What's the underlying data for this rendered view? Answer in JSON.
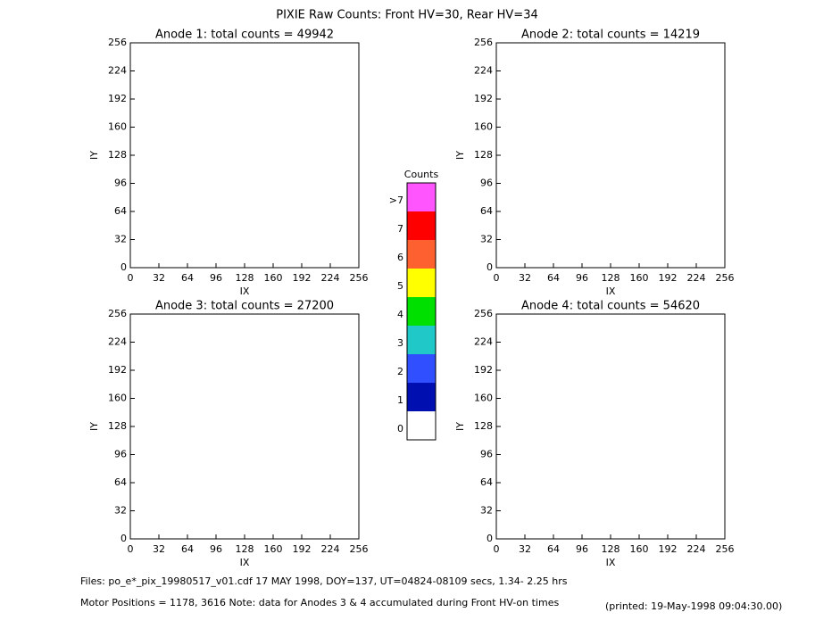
{
  "title": "PIXIE Raw Counts:  Front HV=30, Rear HV=34",
  "chart_data": [
    {
      "type": "heatmap",
      "title": "Anode 1: total counts = 49942",
      "xlabel": "IX",
      "ylabel": "IY",
      "xlim": [
        0,
        256
      ],
      "ylim": [
        0,
        256
      ],
      "xticks": [
        0,
        32,
        64,
        96,
        128,
        160,
        192,
        224,
        256
      ],
      "yticks": [
        0,
        32,
        64,
        96,
        128,
        160,
        192,
        224,
        256
      ]
    },
    {
      "type": "heatmap",
      "title": "Anode 2: total counts = 14219",
      "xlabel": "IX",
      "ylabel": "IY",
      "xlim": [
        0,
        256
      ],
      "ylim": [
        0,
        256
      ],
      "xticks": [
        0,
        32,
        64,
        96,
        128,
        160,
        192,
        224,
        256
      ],
      "yticks": [
        0,
        32,
        64,
        96,
        128,
        160,
        192,
        224,
        256
      ]
    },
    {
      "type": "heatmap",
      "title": "Anode 3: total counts = 27200",
      "xlabel": "IX",
      "ylabel": "IY",
      "xlim": [
        0,
        256
      ],
      "ylim": [
        0,
        256
      ],
      "xticks": [
        0,
        32,
        64,
        96,
        128,
        160,
        192,
        224,
        256
      ],
      "yticks": [
        0,
        32,
        64,
        96,
        128,
        160,
        192,
        224,
        256
      ]
    },
    {
      "type": "heatmap",
      "title": "Anode 4: total counts = 54620",
      "xlabel": "IX",
      "ylabel": "IY",
      "xlim": [
        0,
        256
      ],
      "ylim": [
        0,
        256
      ],
      "xticks": [
        0,
        32,
        64,
        96,
        128,
        160,
        192,
        224,
        256
      ],
      "yticks": [
        0,
        32,
        64,
        96,
        128,
        160,
        192,
        224,
        256
      ]
    }
  ],
  "colorbar": {
    "title": "Counts",
    "labels": [
      "0",
      "1",
      "2",
      "3",
      "4",
      "5",
      "6",
      "7",
      ">7"
    ],
    "colors": [
      "#ffffff",
      "#0010b0",
      "#3050ff",
      "#20c8c8",
      "#00e000",
      "#ffff00",
      "#ff6030",
      "#ff0000",
      "#ff55ff"
    ]
  },
  "footer": {
    "files": "Files: po_e*_pix_19980517_v01.cdf    17 MAY 1998, DOY=137, UT=04824-08109 secs,  1.34- 2.25 hrs",
    "motor": "Motor Positions = 1178, 3616    Note: data for Anodes 3 & 4 accumulated during Front HV-on times",
    "printed": "(printed: 19-May-1998 09:04:30.00)"
  }
}
